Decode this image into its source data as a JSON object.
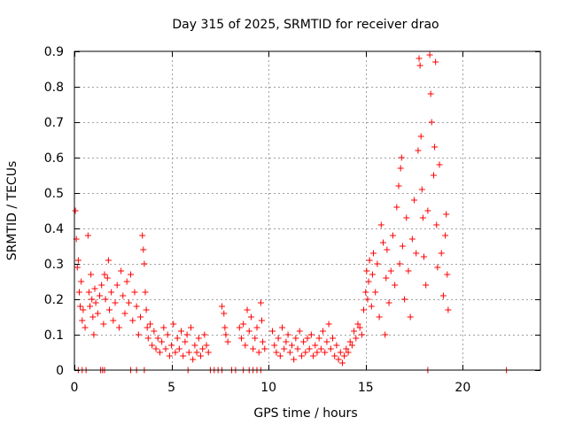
{
  "chart_data": {
    "type": "scatter",
    "title": "Day 315 of 2025, SRMTID for receiver drao",
    "xlabel": "GPS time / hours",
    "ylabel": "SRMTID / TECUs",
    "xlim": [
      0,
      24
    ],
    "ylim": [
      0,
      0.9
    ],
    "x_ticks": [
      0,
      5,
      10,
      15,
      20
    ],
    "x_tick_labels": [
      "0",
      "5",
      "10",
      "15",
      "20"
    ],
    "y_ticks": [
      0,
      0.1,
      0.2,
      0.3,
      0.4,
      0.5,
      0.6,
      0.7,
      0.8,
      0.9
    ],
    "y_tick_labels": [
      "0",
      "0.1",
      "0.2",
      "0.3",
      "0.4",
      "0.5",
      "0.6",
      "0.7",
      "0.8",
      "0.9"
    ],
    "grid": true,
    "marker": "plus",
    "colors": {
      "series": "#ff0000",
      "grid": "#a0a0a0",
      "axes": "#000000"
    },
    "series": [
      {
        "name": "SRMTID",
        "points": [
          [
            0.05,
            0.45
          ],
          [
            0.1,
            0.37
          ],
          [
            0.15,
            0.29
          ],
          [
            0.2,
            0.31
          ],
          [
            0.25,
            0.22
          ],
          [
            0.3,
            0.18
          ],
          [
            0.35,
            0.25
          ],
          [
            0.4,
            0.14
          ],
          [
            0.45,
            0.17
          ],
          [
            0.55,
            0.12
          ],
          [
            0.7,
            0.38
          ],
          [
            0.75,
            0.22
          ],
          [
            0.8,
            0.18
          ],
          [
            0.85,
            0.27
          ],
          [
            0.9,
            0.2
          ],
          [
            0.95,
            0.15
          ],
          [
            1.0,
            0.1
          ],
          [
            1.05,
            0.23
          ],
          [
            1.1,
            0.19
          ],
          [
            1.2,
            0.16
          ],
          [
            1.3,
            0.21
          ],
          [
            1.4,
            0.24
          ],
          [
            1.5,
            0.13
          ],
          [
            1.55,
            0.27
          ],
          [
            1.6,
            0.2
          ],
          [
            1.7,
            0.26
          ],
          [
            1.75,
            0.31
          ],
          [
            1.8,
            0.17
          ],
          [
            1.9,
            0.22
          ],
          [
            2.0,
            0.14
          ],
          [
            2.1,
            0.19
          ],
          [
            2.2,
            0.24
          ],
          [
            2.3,
            0.12
          ],
          [
            2.4,
            0.28
          ],
          [
            2.5,
            0.21
          ],
          [
            2.6,
            0.16
          ],
          [
            2.7,
            0.25
          ],
          [
            2.8,
            0.19
          ],
          [
            2.9,
            0.27
          ],
          [
            3.0,
            0.14
          ],
          [
            3.1,
            0.22
          ],
          [
            3.2,
            0.18
          ],
          [
            3.3,
            0.1
          ],
          [
            3.4,
            0.15
          ],
          [
            3.5,
            0.38
          ],
          [
            3.55,
            0.34
          ],
          [
            3.6,
            0.3
          ],
          [
            3.65,
            0.22
          ],
          [
            3.7,
            0.17
          ],
          [
            3.75,
            0.12
          ],
          [
            3.8,
            0.09
          ],
          [
            3.9,
            0.13
          ],
          [
            4.0,
            0.07
          ],
          [
            4.1,
            0.11
          ],
          [
            4.2,
            0.06
          ],
          [
            4.3,
            0.09
          ],
          [
            4.4,
            0.05
          ],
          [
            4.5,
            0.08
          ],
          [
            4.6,
            0.12
          ],
          [
            4.7,
            0.06
          ],
          [
            4.8,
            0.1
          ],
          [
            4.9,
            0.04
          ],
          [
            5.0,
            0.07
          ],
          [
            5.1,
            0.13
          ],
          [
            5.2,
            0.05
          ],
          [
            5.3,
            0.09
          ],
          [
            5.4,
            0.06
          ],
          [
            5.5,
            0.11
          ],
          [
            5.6,
            0.04
          ],
          [
            5.7,
            0.08
          ],
          [
            5.8,
            0.1
          ],
          [
            5.9,
            0.05
          ],
          [
            6.0,
            0.12
          ],
          [
            6.1,
            0.03
          ],
          [
            6.2,
            0.07
          ],
          [
            6.3,
            0.05
          ],
          [
            6.4,
            0.09
          ],
          [
            6.5,
            0.04
          ],
          [
            6.6,
            0.06
          ],
          [
            6.7,
            0.1
          ],
          [
            6.8,
            0.07
          ],
          [
            6.9,
            0.05
          ],
          [
            7.6,
            0.18
          ],
          [
            7.7,
            0.16
          ],
          [
            7.75,
            0.12
          ],
          [
            7.8,
            0.1
          ],
          [
            7.9,
            0.08
          ],
          [
            8.5,
            0.12
          ],
          [
            8.6,
            0.09
          ],
          [
            8.7,
            0.13
          ],
          [
            8.8,
            0.07
          ],
          [
            8.9,
            0.17
          ],
          [
            9.0,
            0.11
          ],
          [
            9.1,
            0.15
          ],
          [
            9.2,
            0.06
          ],
          [
            9.3,
            0.09
          ],
          [
            9.4,
            0.12
          ],
          [
            9.5,
            0.05
          ],
          [
            9.6,
            0.19
          ],
          [
            9.65,
            0.14
          ],
          [
            9.7,
            0.08
          ],
          [
            9.8,
            0.06
          ],
          [
            10.2,
            0.11
          ],
          [
            10.3,
            0.07
          ],
          [
            10.4,
            0.05
          ],
          [
            10.5,
            0.09
          ],
          [
            10.6,
            0.04
          ],
          [
            10.7,
            0.12
          ],
          [
            10.8,
            0.06
          ],
          [
            10.9,
            0.08
          ],
          [
            11.0,
            0.1
          ],
          [
            11.1,
            0.05
          ],
          [
            11.2,
            0.07
          ],
          [
            11.3,
            0.03
          ],
          [
            11.4,
            0.09
          ],
          [
            11.5,
            0.06
          ],
          [
            11.6,
            0.11
          ],
          [
            11.7,
            0.04
          ],
          [
            11.8,
            0.08
          ],
          [
            11.9,
            0.05
          ],
          [
            12.0,
            0.09
          ],
          [
            12.1,
            0.06
          ],
          [
            12.2,
            0.1
          ],
          [
            12.3,
            0.04
          ],
          [
            12.4,
            0.07
          ],
          [
            12.5,
            0.05
          ],
          [
            12.6,
            0.09
          ],
          [
            12.7,
            0.06
          ],
          [
            12.8,
            0.11
          ],
          [
            12.9,
            0.05
          ],
          [
            13.0,
            0.08
          ],
          [
            13.1,
            0.13
          ],
          [
            13.2,
            0.06
          ],
          [
            13.3,
            0.09
          ],
          [
            13.4,
            0.04
          ],
          [
            13.5,
            0.07
          ],
          [
            13.6,
            0.03
          ],
          [
            13.7,
            0.05
          ],
          [
            13.8,
            0.02
          ],
          [
            13.9,
            0.04
          ],
          [
            14.0,
            0.06
          ],
          [
            14.1,
            0.05
          ],
          [
            14.2,
            0.08
          ],
          [
            14.3,
            0.07
          ],
          [
            14.4,
            0.11
          ],
          [
            14.5,
            0.09
          ],
          [
            14.6,
            0.13
          ],
          [
            14.7,
            0.12
          ],
          [
            14.8,
            0.1
          ],
          [
            14.9,
            0.17
          ],
          [
            15.0,
            0.22
          ],
          [
            15.05,
            0.28
          ],
          [
            15.1,
            0.2
          ],
          [
            15.15,
            0.25
          ],
          [
            15.2,
            0.31
          ],
          [
            15.3,
            0.18
          ],
          [
            15.35,
            0.27
          ],
          [
            15.4,
            0.33
          ],
          [
            15.5,
            0.22
          ],
          [
            15.6,
            0.3
          ],
          [
            15.7,
            0.15
          ],
          [
            15.8,
            0.41
          ],
          [
            15.9,
            0.36
          ],
          [
            16.0,
            0.1
          ],
          [
            16.05,
            0.26
          ],
          [
            16.1,
            0.34
          ],
          [
            16.2,
            0.19
          ],
          [
            16.3,
            0.28
          ],
          [
            16.4,
            0.38
          ],
          [
            16.5,
            0.24
          ],
          [
            16.6,
            0.46
          ],
          [
            16.7,
            0.52
          ],
          [
            16.75,
            0.3
          ],
          [
            16.8,
            0.57
          ],
          [
            16.85,
            0.6
          ],
          [
            16.9,
            0.35
          ],
          [
            17.0,
            0.2
          ],
          [
            17.1,
            0.43
          ],
          [
            17.2,
            0.28
          ],
          [
            17.3,
            0.15
          ],
          [
            17.4,
            0.37
          ],
          [
            17.5,
            0.48
          ],
          [
            17.6,
            0.33
          ],
          [
            17.7,
            0.62
          ],
          [
            17.75,
            0.88
          ],
          [
            17.8,
            0.86
          ],
          [
            17.85,
            0.66
          ],
          [
            17.9,
            0.51
          ],
          [
            17.95,
            0.43
          ],
          [
            18.0,
            0.32
          ],
          [
            18.1,
            0.24
          ],
          [
            18.2,
            0.45
          ],
          [
            18.3,
            0.89
          ],
          [
            18.35,
            0.78
          ],
          [
            18.4,
            0.7
          ],
          [
            18.5,
            0.55
          ],
          [
            18.55,
            0.63
          ],
          [
            18.6,
            0.87
          ],
          [
            18.65,
            0.41
          ],
          [
            18.7,
            0.29
          ],
          [
            18.8,
            0.58
          ],
          [
            18.9,
            0.33
          ],
          [
            19.0,
            0.21
          ],
          [
            19.1,
            0.38
          ],
          [
            19.15,
            0.44
          ],
          [
            19.2,
            0.27
          ],
          [
            19.25,
            0.17
          ],
          [
            0.2,
            0.0
          ],
          [
            0.4,
            0.0
          ],
          [
            0.6,
            0.0
          ],
          [
            1.35,
            0.0
          ],
          [
            1.45,
            0.0
          ],
          [
            1.55,
            0.0
          ],
          [
            2.9,
            0.0
          ],
          [
            3.2,
            0.0
          ],
          [
            3.6,
            0.0
          ],
          [
            5.85,
            0.0
          ],
          [
            7.0,
            0.0
          ],
          [
            7.2,
            0.0
          ],
          [
            7.4,
            0.0
          ],
          [
            7.6,
            0.0
          ],
          [
            8.1,
            0.0
          ],
          [
            8.3,
            0.0
          ],
          [
            8.7,
            0.0
          ],
          [
            9.0,
            0.0
          ],
          [
            9.2,
            0.0
          ],
          [
            9.4,
            0.0
          ],
          [
            9.6,
            0.0
          ],
          [
            18.2,
            0.0
          ],
          [
            22.25,
            0.0
          ]
        ]
      }
    ]
  }
}
